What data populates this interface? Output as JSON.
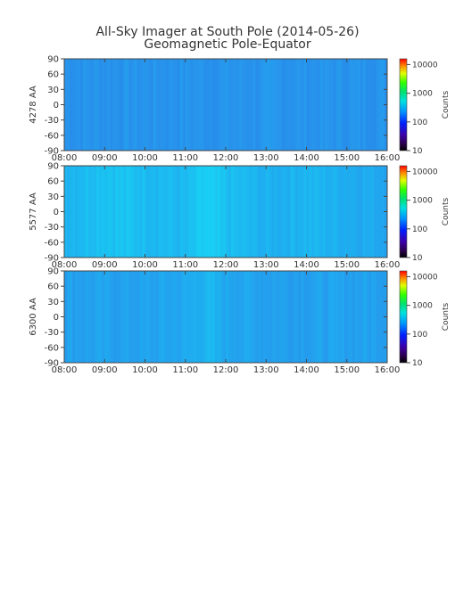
{
  "title": "All-Sky Imager at South Pole (2014-05-26)",
  "subtitle": "Geomagnetic Pole-Equator",
  "chart_data": [
    {
      "type": "heatmap",
      "ylabel": "4278 AA",
      "x_ticks": [
        "08:00",
        "09:00",
        "10:00",
        "11:00",
        "12:00",
        "13:00",
        "14:00",
        "15:00",
        "16:00"
      ],
      "y_ticks": [
        "90",
        "60",
        "30",
        "0",
        "-30",
        "-60",
        "-90"
      ],
      "colorbar_label": "Counts",
      "colorbar_ticks": [
        "10000",
        "1000",
        "100",
        "10"
      ],
      "intensity_profile": {
        "time": [
          "08:00",
          "09:00",
          "10:00",
          "11:00",
          "11:30",
          "12:00",
          "13:00",
          "14:00",
          "15:00",
          "16:00"
        ],
        "mean_log_counts": [
          2.5,
          2.5,
          2.5,
          2.5,
          2.5,
          2.5,
          2.5,
          2.5,
          2.5,
          2.5
        ]
      }
    },
    {
      "type": "heatmap",
      "ylabel": "5577 AA",
      "x_ticks": [
        "08:00",
        "09:00",
        "10:00",
        "11:00",
        "12:00",
        "13:00",
        "14:00",
        "15:00",
        "16:00"
      ],
      "y_ticks": [
        "90",
        "60",
        "30",
        "0",
        "-30",
        "-60",
        "-90"
      ],
      "colorbar_label": "Counts",
      "colorbar_ticks": [
        "10000",
        "1000",
        "100",
        "10"
      ],
      "intensity_profile": {
        "time": [
          "08:00",
          "09:00",
          "10:00",
          "11:00",
          "11:30",
          "12:00",
          "13:00",
          "14:00",
          "15:00",
          "16:00"
        ],
        "mean_log_counts": [
          2.75,
          2.85,
          2.8,
          2.75,
          2.9,
          2.8,
          2.7,
          2.75,
          2.7,
          2.65
        ]
      }
    },
    {
      "type": "heatmap",
      "ylabel": "6300 AA",
      "x_ticks": [
        "08:00",
        "09:00",
        "10:00",
        "11:00",
        "12:00",
        "13:00",
        "14:00",
        "15:00",
        "16:00"
      ],
      "y_ticks": [
        "90",
        "60",
        "30",
        "0",
        "-30",
        "-60",
        "-90"
      ],
      "colorbar_label": "Counts",
      "colorbar_ticks": [
        "10000",
        "1000",
        "100",
        "10"
      ],
      "intensity_profile": {
        "time": [
          "08:00",
          "09:00",
          "10:00",
          "11:00",
          "11:30",
          "12:00",
          "13:00",
          "14:00",
          "15:00",
          "16:00"
        ],
        "mean_log_counts": [
          2.6,
          2.6,
          2.6,
          2.65,
          2.75,
          2.65,
          2.6,
          2.6,
          2.6,
          2.6
        ]
      }
    }
  ]
}
